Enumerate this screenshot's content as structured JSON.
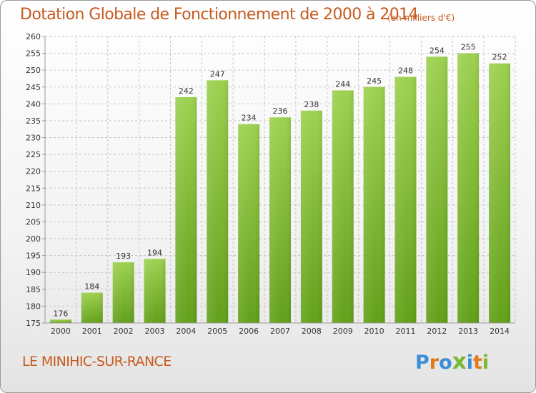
{
  "header": {
    "title": "Dotation Globale de Fonctionnement de 2000 à 2014",
    "unit": "(en milliers d'€)"
  },
  "footer": {
    "commune": "LE MINIHIC-SUR-RANCE",
    "logo_text": "Proxiti"
  },
  "colors": {
    "accent": "#c85a1e",
    "bar_light": "#9dd150",
    "bar_dark": "#62a019",
    "grid": "#c4c4c4"
  },
  "chart_data": {
    "type": "bar",
    "title": "Dotation Globale de Fonctionnement de 2000 à 2014",
    "categories": [
      "2000",
      "2001",
      "2002",
      "2003",
      "2004",
      "2005",
      "2006",
      "2007",
      "2008",
      "2009",
      "2010",
      "2011",
      "2012",
      "2013",
      "2014"
    ],
    "values": [
      176,
      184,
      193,
      194,
      242,
      247,
      234,
      236,
      238,
      244,
      245,
      248,
      254,
      255,
      252
    ],
    "ylim": [
      175,
      260
    ],
    "yticks": [
      175,
      180,
      185,
      190,
      195,
      200,
      205,
      210,
      215,
      220,
      225,
      230,
      235,
      240,
      245,
      250,
      255,
      260
    ],
    "grid": true,
    "xlabel": "",
    "ylabel": ""
  }
}
